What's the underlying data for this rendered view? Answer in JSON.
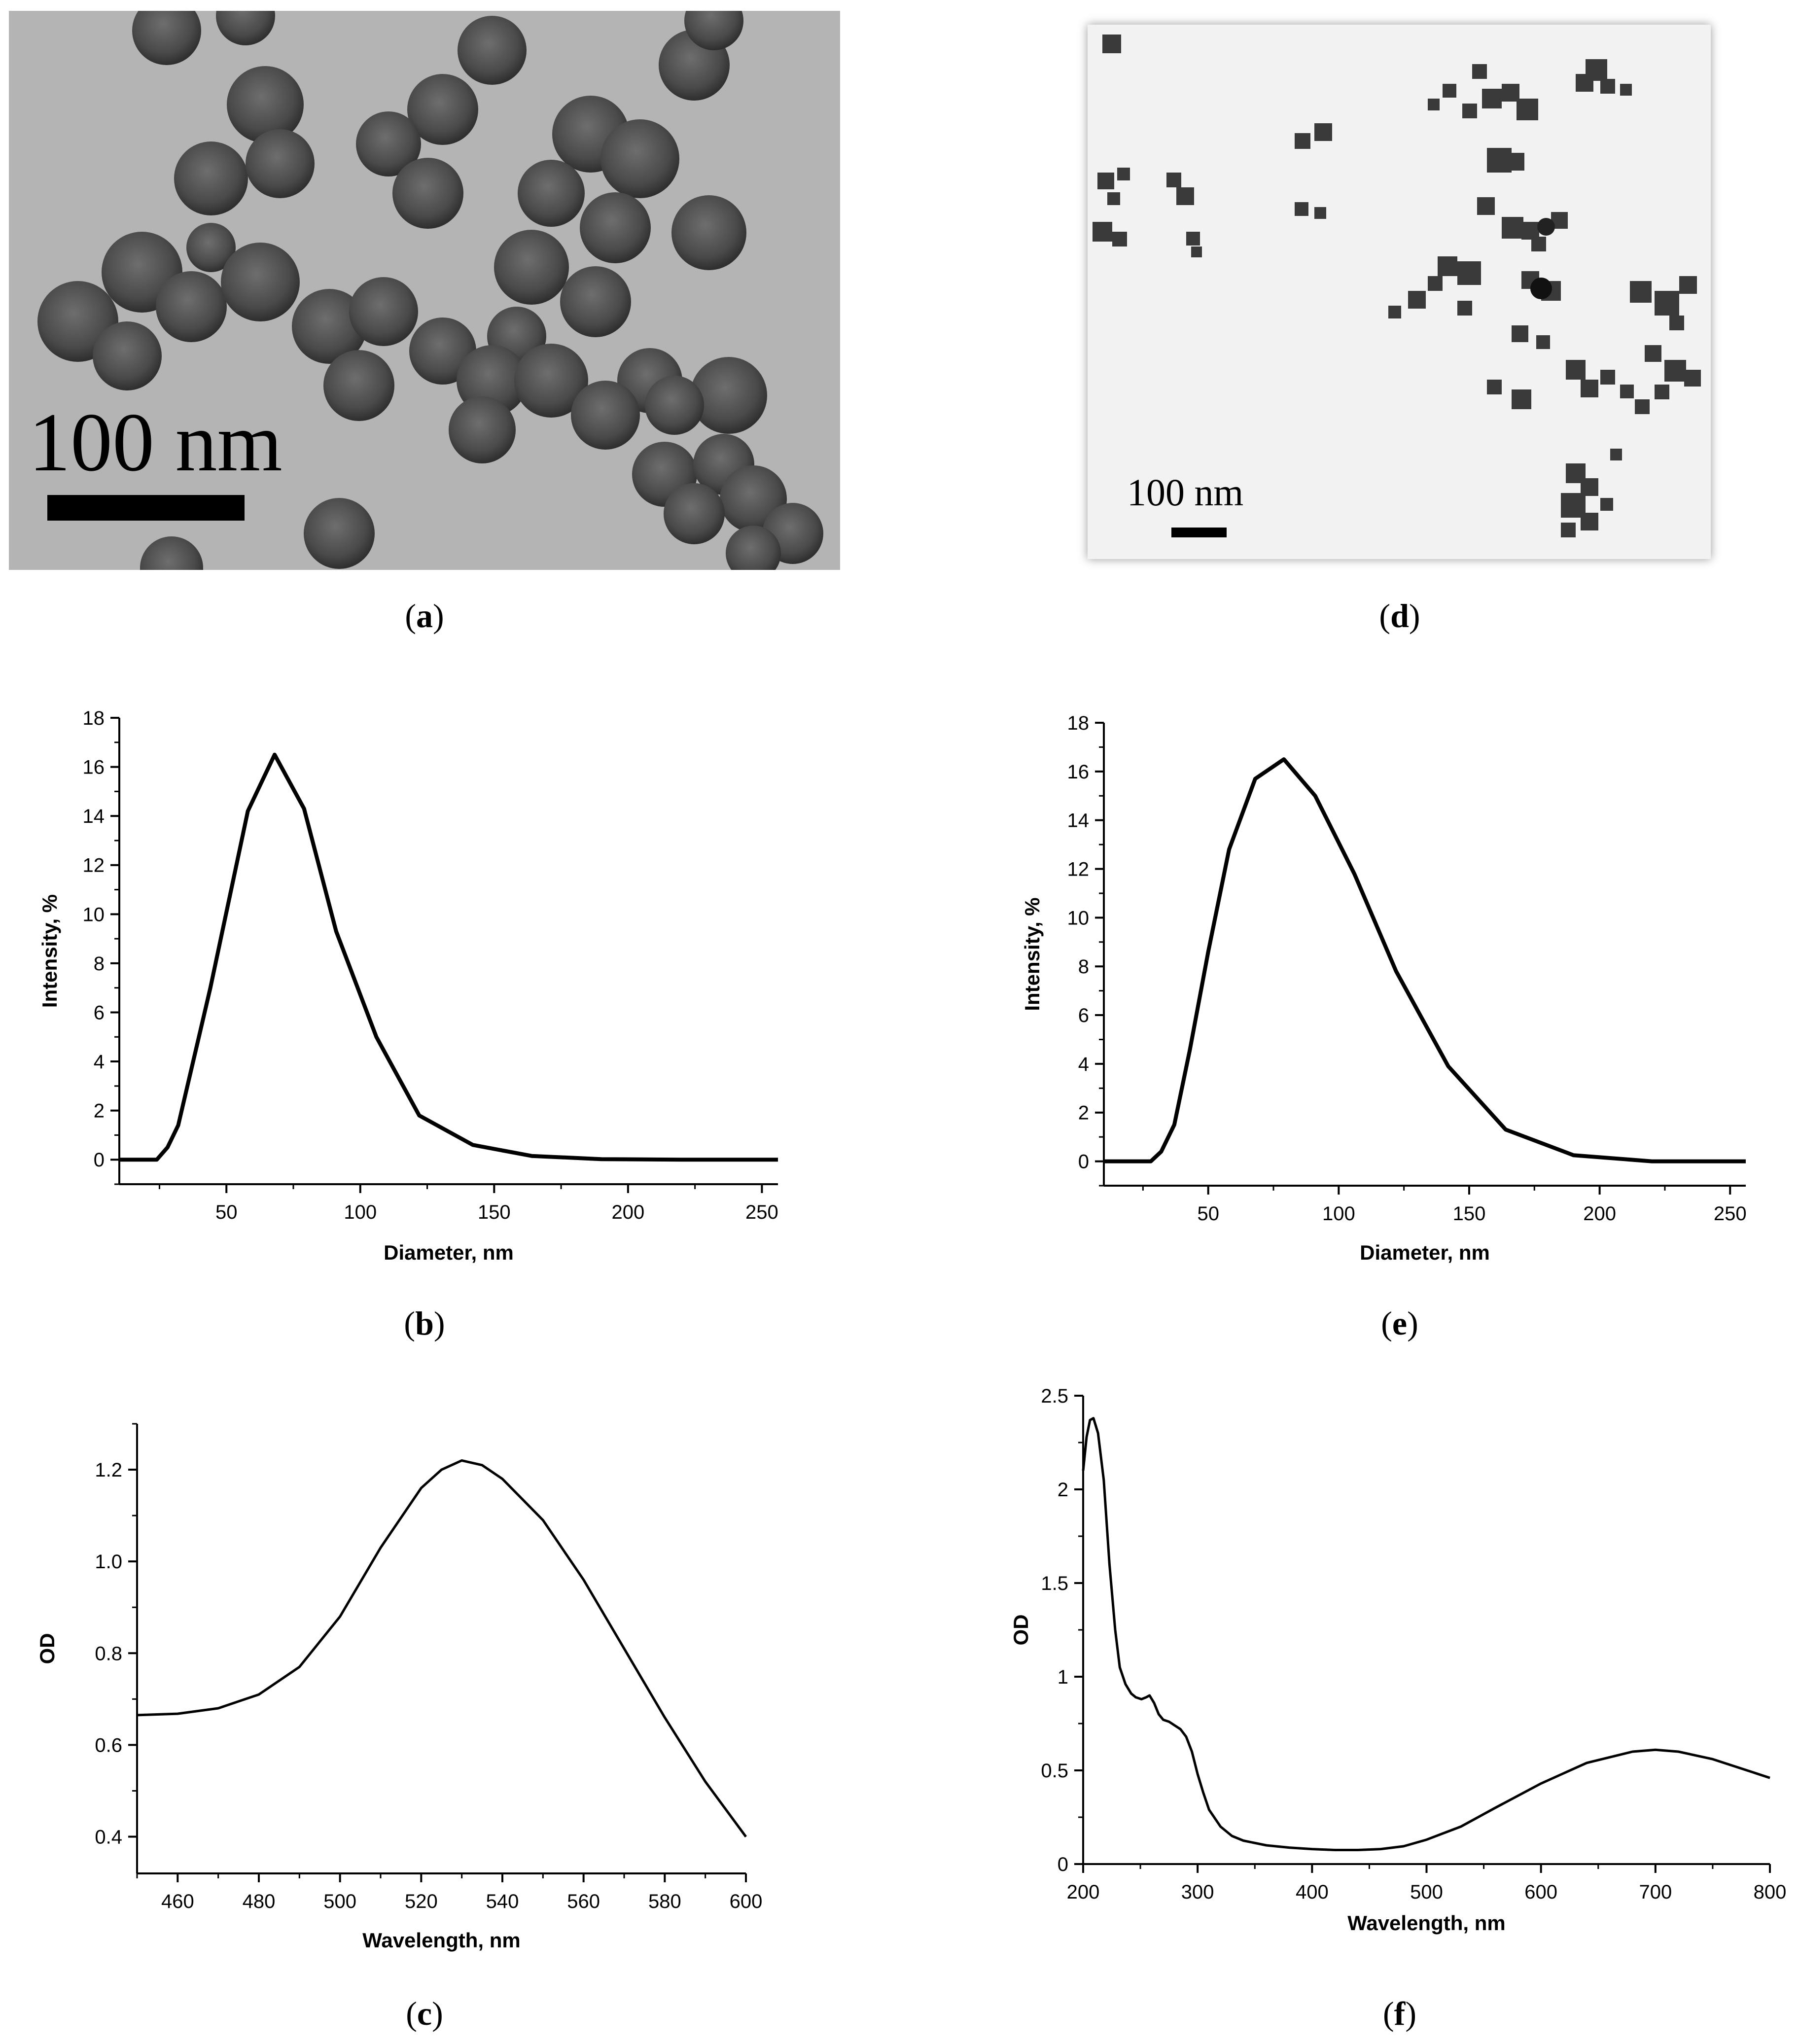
{
  "panels": {
    "a": {
      "label": "a",
      "scale_text": "100 nm"
    },
    "d": {
      "label": "d",
      "scale_text": "100 nm"
    },
    "b": {
      "label": "b"
    },
    "e": {
      "label": "e"
    },
    "c": {
      "label": "c"
    },
    "f": {
      "label": "f"
    }
  },
  "chart_data": [
    {
      "id": "b",
      "type": "line",
      "xlabel": "Diameter, nm",
      "ylabel": "Intensity, %",
      "xlim": [
        10,
        256
      ],
      "ylim": [
        -1,
        18
      ],
      "xticks": [
        50,
        100,
        150,
        200,
        250
      ],
      "yticks": [
        0,
        2,
        4,
        6,
        8,
        10,
        12,
        14,
        16,
        18
      ],
      "series": [
        {
          "x": [
            10,
            24,
            28,
            32,
            44,
            58,
            68,
            79,
            91,
            106,
            122,
            142,
            164,
            190,
            220,
            256
          ],
          "y": [
            0,
            0,
            0.5,
            1.4,
            7,
            14.2,
            16.5,
            14.3,
            9.3,
            5.0,
            1.8,
            0.6,
            0.15,
            0.02,
            0,
            0
          ]
        }
      ]
    },
    {
      "id": "e",
      "type": "line",
      "xlabel": "Diameter, nm",
      "ylabel": "Intensity, %",
      "xlim": [
        10,
        256
      ],
      "ylim": [
        -1,
        18
      ],
      "xticks": [
        50,
        100,
        150,
        200,
        250
      ],
      "yticks": [
        0,
        2,
        4,
        6,
        8,
        10,
        12,
        14,
        16,
        18
      ],
      "series": [
        {
          "x": [
            10,
            28,
            32,
            37,
            43,
            50,
            58,
            68,
            79,
            91,
            106,
            122,
            142,
            164,
            190,
            220,
            256
          ],
          "y": [
            0,
            0,
            0.4,
            1.5,
            4.6,
            8.6,
            12.8,
            15.7,
            16.5,
            15.0,
            11.8,
            7.8,
            3.9,
            1.3,
            0.25,
            0,
            0
          ]
        }
      ]
    },
    {
      "id": "c",
      "type": "line",
      "xlabel": "Wavelength, nm",
      "ylabel": "OD",
      "xlim": [
        450,
        600
      ],
      "ylim": [
        0.32,
        1.3
      ],
      "xticks": [
        460,
        480,
        500,
        520,
        540,
        560,
        580,
        600
      ],
      "yticks": [
        0.4,
        0.6,
        0.8,
        1.0,
        1.2
      ],
      "ytick_labels": [
        "0.4",
        "0.6",
        "0.8",
        "1.0",
        "1.2"
      ],
      "series": [
        {
          "x": [
            450,
            460,
            470,
            480,
            490,
            500,
            510,
            520,
            525,
            530,
            535,
            540,
            550,
            560,
            570,
            580,
            590,
            600
          ],
          "y": [
            0.665,
            0.668,
            0.68,
            0.71,
            0.77,
            0.88,
            1.03,
            1.16,
            1.2,
            1.22,
            1.21,
            1.18,
            1.09,
            0.96,
            0.81,
            0.66,
            0.52,
            0.4
          ]
        }
      ]
    },
    {
      "id": "f",
      "type": "line",
      "xlabel": "Wavelength, nm",
      "ylabel": "OD",
      "xlim": [
        200,
        800
      ],
      "ylim": [
        0,
        2.5
      ],
      "xticks": [
        200,
        300,
        400,
        500,
        600,
        700,
        800
      ],
      "yticks": [
        0,
        0.5,
        1,
        1.5,
        2,
        2.5
      ],
      "ytick_labels": [
        "0",
        "0.5",
        "1",
        "1.5",
        "2",
        "2.5"
      ],
      "series": [
        {
          "x": [
            200,
            203,
            206,
            209,
            213,
            218,
            223,
            228,
            232,
            237,
            242,
            246,
            251,
            255,
            258,
            262,
            266,
            270,
            275,
            280,
            285,
            290,
            295,
            300,
            305,
            310,
            320,
            330,
            340,
            360,
            380,
            400,
            420,
            440,
            460,
            480,
            500,
            530,
            560,
            600,
            640,
            680,
            700,
            720,
            750,
            780,
            800
          ],
          "y": [
            2.1,
            2.28,
            2.37,
            2.38,
            2.3,
            2.05,
            1.6,
            1.25,
            1.05,
            0.96,
            0.91,
            0.89,
            0.88,
            0.89,
            0.9,
            0.86,
            0.8,
            0.77,
            0.76,
            0.74,
            0.72,
            0.68,
            0.6,
            0.48,
            0.38,
            0.29,
            0.2,
            0.15,
            0.125,
            0.1,
            0.088,
            0.08,
            0.075,
            0.075,
            0.08,
            0.095,
            0.13,
            0.2,
            0.3,
            0.43,
            0.54,
            0.6,
            0.61,
            0.6,
            0.56,
            0.5,
            0.46
          ]
        }
      ]
    }
  ]
}
